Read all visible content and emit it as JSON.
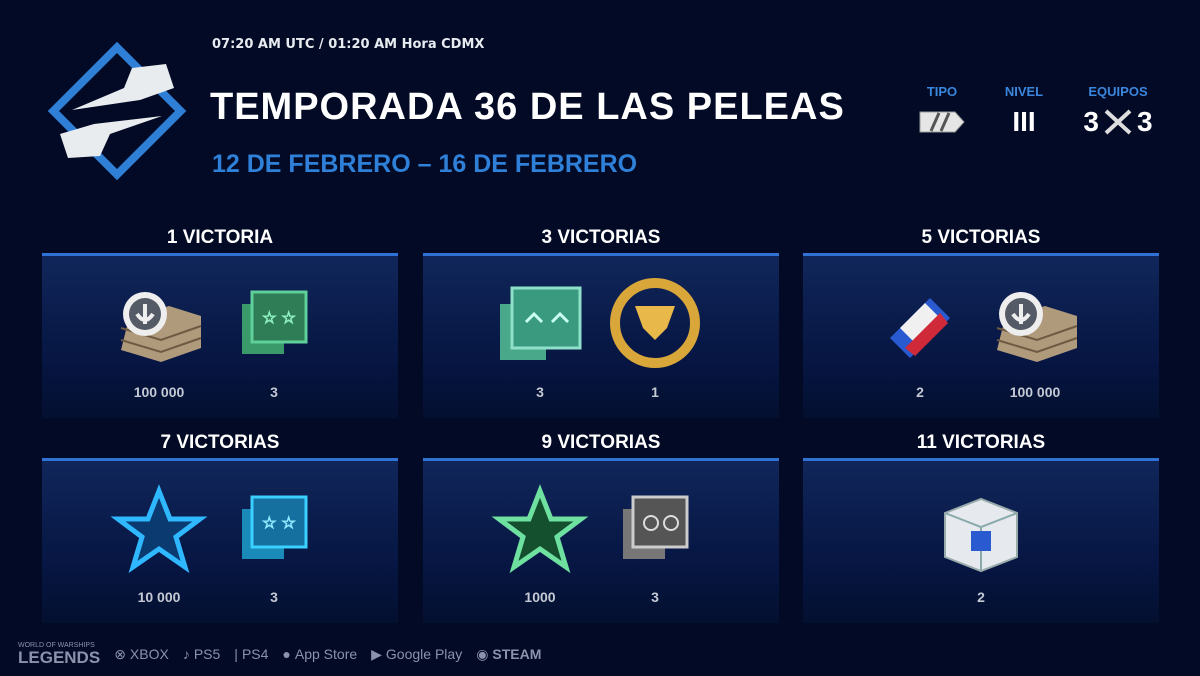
{
  "header": {
    "time": "07:20 AM UTC / 01:20 AM Hora CDMX",
    "title": "TEMPORADA 36 DE LAS PELEAS",
    "dates": "12 DE FEBRERO – 16 DE FEBRERO",
    "logo": "armored-fists-logo"
  },
  "meta": {
    "tipo": {
      "label": "TIPO",
      "icon": "battle-type-icon"
    },
    "nivel": {
      "label": "NIVEL",
      "value": "III"
    },
    "equipos": {
      "label": "EQUIPOS",
      "left": "3",
      "right": "3",
      "icon": "crossed-swords-icon"
    }
  },
  "colors": {
    "background": "#020a25",
    "accent": "#2f80d8",
    "panel_border": "#2f72d4"
  },
  "rewards": [
    {
      "title": "1 VICTORIA",
      "items": [
        {
          "icon": "credits-crate-icon",
          "value": "100 000"
        },
        {
          "icon": "green-flag-stars-icon",
          "value": "3"
        }
      ]
    },
    {
      "title": "3 VICTORIAS",
      "items": [
        {
          "icon": "teal-flag-chevrons-icon",
          "value": "3"
        },
        {
          "icon": "gold-emblem-icon",
          "value": "1"
        }
      ]
    },
    {
      "title": "5 VICTORIAS",
      "items": [
        {
          "icon": "camouflage-icon",
          "value": "2"
        },
        {
          "icon": "credits-crate-icon",
          "value": "100 000"
        }
      ]
    },
    {
      "title": "7 VICTORIAS",
      "items": [
        {
          "icon": "blue-star-icon",
          "value": "10 000"
        },
        {
          "icon": "blue-flag-stars-icon",
          "value": "3"
        }
      ]
    },
    {
      "title": "9 VICTORIAS",
      "items": [
        {
          "icon": "green-star-icon",
          "value": "1000"
        },
        {
          "icon": "gray-flag-coins-icon",
          "value": "3"
        }
      ]
    },
    {
      "title": "11 VICTORIAS",
      "items": [
        {
          "icon": "white-container-icon",
          "value": "2"
        }
      ]
    }
  ],
  "footer": {
    "brand_small": "WORLD OF WARSHIPS",
    "brand": "LEGENDS",
    "platforms": [
      "XBOX",
      "PS5",
      "PS4",
      "App Store",
      "Google Play",
      "STEAM"
    ]
  }
}
